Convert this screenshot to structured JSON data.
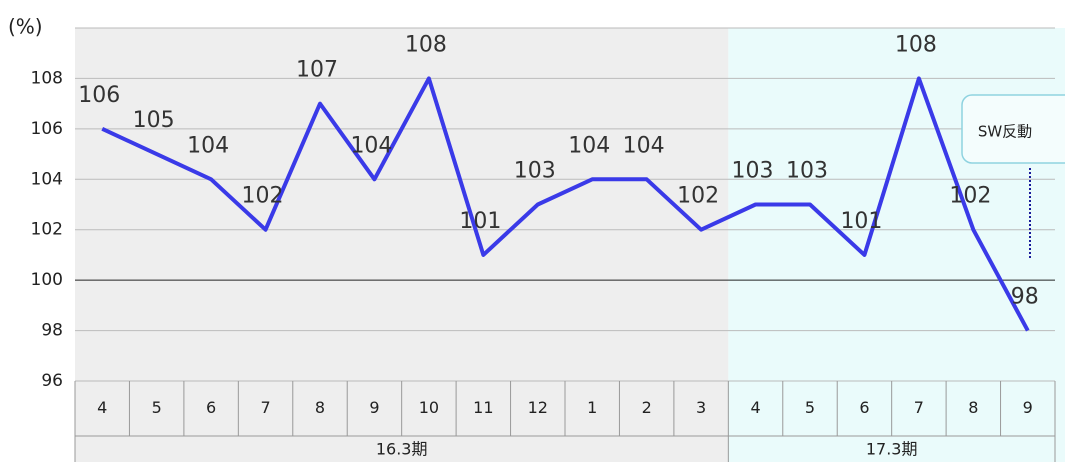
{
  "chart_data": {
    "type": "line",
    "y_axis_label": "(%)",
    "categories": [
      "4",
      "5",
      "6",
      "7",
      "8",
      "9",
      "10",
      "11",
      "12",
      "1",
      "2",
      "3",
      "4",
      "5",
      "6",
      "7",
      "8",
      "9"
    ],
    "groups": [
      {
        "name": "16.3期",
        "count": 12,
        "color": "#eeeeee"
      },
      {
        "name": "17.3期",
        "count": 6,
        "color": "#eafbfb"
      }
    ],
    "series": [
      {
        "name": "",
        "color": "#3a3ae8",
        "values": [
          106,
          105,
          104,
          102,
          107,
          104,
          108,
          101,
          103,
          104,
          104,
          102,
          103,
          103,
          101,
          108,
          102,
          98
        ]
      }
    ],
    "ylim": [
      96,
      110
    ],
    "yticks": [
      96,
      98,
      100,
      102,
      104,
      106,
      108
    ],
    "grid": true,
    "reference_line": 100,
    "annotation": {
      "text": "SW反動",
      "color": "#1a1adc"
    }
  }
}
